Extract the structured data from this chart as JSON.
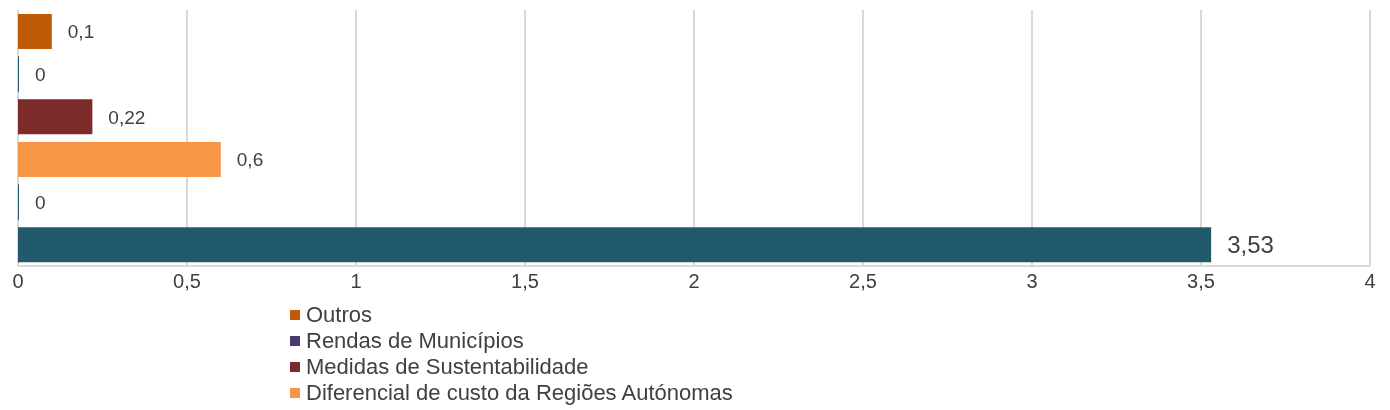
{
  "chart_data": {
    "type": "bar",
    "orientation": "horizontal",
    "categories": [
      null,
      null,
      null,
      null,
      null,
      null
    ],
    "series": [
      {
        "name": "Outros",
        "color": "#c05a06",
        "values": [
          0.1,
          null,
          null,
          null,
          null,
          null
        ],
        "value_labels": [
          "0,1",
          null,
          null,
          null,
          null,
          null
        ]
      },
      {
        "name": "Rendas de Municípios",
        "color": "#4b3a6e",
        "values": [
          null,
          0,
          null,
          null,
          null,
          null
        ],
        "value_labels": [
          null,
          "0",
          null,
          null,
          null,
          null
        ]
      },
      {
        "name": "Medidas de Sustentabilidade",
        "color": "#7d2a2a",
        "values": [
          null,
          null,
          0.22,
          null,
          null,
          null
        ],
        "value_labels": [
          null,
          null,
          "0,22",
          null,
          null,
          null
        ]
      },
      {
        "name": "Diferencial de custo da Regiões Autónomas",
        "color": "#f79646",
        "values": [
          null,
          null,
          null,
          0.6,
          null,
          null
        ],
        "value_labels": [
          null,
          null,
          null,
          "0,6",
          null,
          null
        ]
      },
      {
        "color": "#8a8a8a",
        "values": [
          null,
          null,
          null,
          null,
          0,
          null
        ],
        "value_labels": [
          null,
          null,
          null,
          null,
          "0",
          null
        ]
      },
      {
        "color": "#215a6a",
        "values": [
          null,
          null,
          null,
          null,
          null,
          3.53
        ],
        "value_labels": [
          null,
          null,
          null,
          null,
          null,
          "3,53"
        ]
      }
    ],
    "xlim": [
      0,
      4
    ],
    "xticks": [
      0,
      {
        "value": 0.5,
        "label": "0,5"
      },
      1,
      {
        "value": 1.5,
        "label": "1,5"
      },
      2,
      {
        "value": 2.5,
        "label": "2,5"
      },
      3,
      {
        "value": 3.5,
        "label": "3,5"
      },
      4
    ],
    "grid": "x",
    "legend": "bottom"
  }
}
